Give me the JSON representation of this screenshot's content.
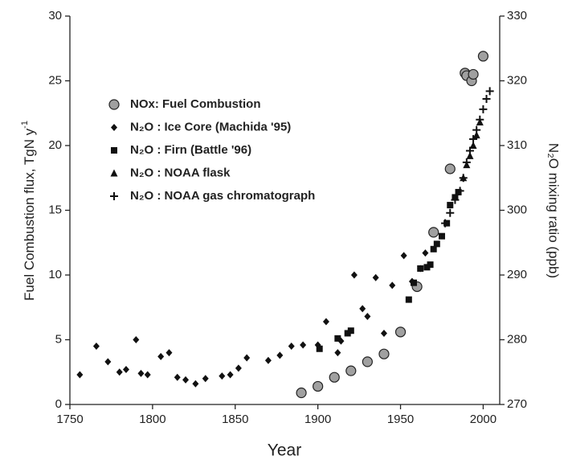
{
  "chart_data": {
    "type": "scatter",
    "x_label": "Year",
    "y_label": "Fuel Combustion flux, TgN  y",
    "y_label_sup": "-1",
    "y2_label": "N₂O mixing ratio (ppb)",
    "xlim": [
      1750,
      2010
    ],
    "xticks": [
      1750,
      1800,
      1850,
      1900,
      1950,
      2000
    ],
    "ylim": [
      0,
      30
    ],
    "yticks": [
      0,
      5,
      10,
      15,
      20,
      25,
      30
    ],
    "y2lim": [
      270,
      330
    ],
    "y2ticks": [
      270,
      280,
      290,
      300,
      310,
      320,
      330
    ],
    "legend": "upper left",
    "series": [
      {
        "name": "NOx: Fuel Combustion",
        "color": "#a0a0a0",
        "marker": "circle",
        "axis": "y",
        "x": [
          1890,
          1900,
          1910,
          1920,
          1930,
          1940,
          1950,
          1960,
          1970,
          1980,
          1989,
          1990,
          1993,
          1994,
          2000
        ],
        "values": [
          0.9,
          1.4,
          2.1,
          2.6,
          3.3,
          3.9,
          5.6,
          9.1,
          13.3,
          18.2,
          25.6,
          25.4,
          25.0,
          25.5,
          26.9
        ]
      },
      {
        "name": "N₂O : Ice Core (Machida '95)",
        "color": "#111111",
        "marker": "diamond",
        "axis": "y2",
        "x": [
          1756,
          1766,
          1773,
          1780,
          1784,
          1790,
          1793,
          1797,
          1805,
          1810,
          1815,
          1820,
          1826,
          1832,
          1842,
          1847,
          1852,
          1857,
          1870,
          1877,
          1884,
          1891,
          1900,
          1905,
          1912,
          1914,
          1922,
          1927,
          1930,
          1935,
          1940,
          1945,
          1952,
          1957,
          1962,
          1965
        ],
        "values": [
          274.6,
          279,
          276.6,
          275,
          275.4,
          280,
          274.8,
          274.6,
          277.4,
          278,
          274.2,
          273.8,
          273.2,
          274,
          274.4,
          274.6,
          275.6,
          277.2,
          276.8,
          277.6,
          279,
          279.2,
          279.2,
          282.8,
          278,
          279.8,
          290,
          284.8,
          283.6,
          289.6,
          281,
          288.4,
          293,
          289,
          291,
          293.4
        ]
      },
      {
        "name": "N₂O : Firn (Battle '96)",
        "color": "#111111",
        "marker": "square",
        "axis": "y2",
        "x": [
          1901,
          1912,
          1918,
          1920,
          1955,
          1958,
          1962,
          1966,
          1968,
          1970,
          1972,
          1975,
          1978,
          1980,
          1983,
          1985
        ],
        "values": [
          278.6,
          280.2,
          281,
          281.4,
          286.2,
          288.8,
          291,
          291.2,
          291.6,
          294,
          294.8,
          296,
          298,
          300.8,
          302,
          302.8
        ]
      },
      {
        "name": "N₂O : NOAA flask",
        "color": "#111111",
        "marker": "triangle",
        "axis": "y2",
        "x": [
          1988,
          1990,
          1992,
          1994,
          1996,
          1998
        ],
        "values": [
          305,
          307,
          308.4,
          310,
          311.6,
          313.6
        ]
      },
      {
        "name": "N₂O : NOAA gas chromatograph",
        "color": "#111111",
        "marker": "plus",
        "axis": "y2",
        "x": [
          1977,
          1980,
          1983,
          1986,
          1988,
          1990,
          1992,
          1994,
          1996,
          1998,
          2000,
          2002,
          2004
        ],
        "values": [
          298,
          299.6,
          301.6,
          303,
          305,
          307.4,
          309.2,
          311,
          312.4,
          314,
          315.6,
          317.2,
          318.4
        ]
      }
    ]
  }
}
